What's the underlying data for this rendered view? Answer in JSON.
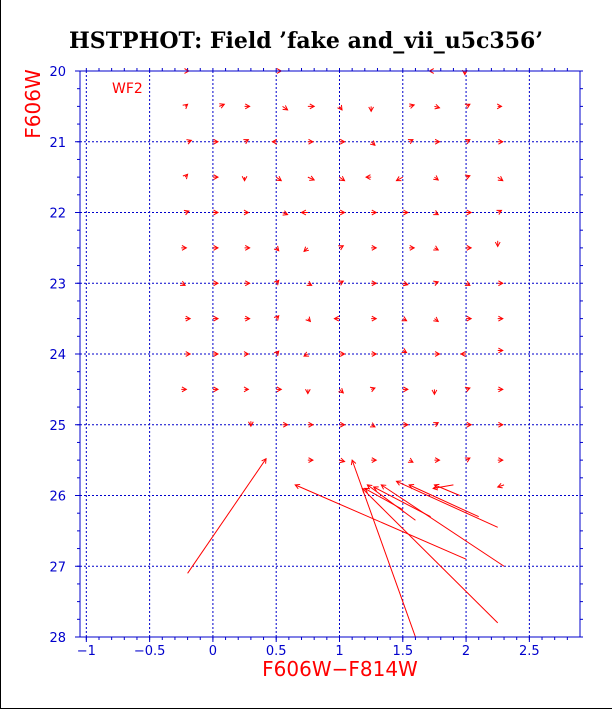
{
  "chart_data": {
    "type": "scatter",
    "title": "HSTPHOT: Field ’fake and_vii_u5c356’",
    "xlabel": "F606W−F814W",
    "ylabel": "F606W",
    "annotation": "WF2",
    "xlim": [
      -1.05,
      2.9
    ],
    "ylim": [
      28,
      20
    ],
    "y_inverted": true,
    "grid": true,
    "x_ticks": [
      "−1",
      "−0.5",
      "0",
      "0.5",
      "1",
      "1.5",
      "2",
      "2.5"
    ],
    "x_tick_values": [
      -1,
      -0.5,
      0,
      0.5,
      1,
      1.5,
      2,
      2.5
    ],
    "y_ticks": [
      "20",
      "21",
      "22",
      "23",
      "24",
      "25",
      "26",
      "27",
      "28"
    ],
    "y_tick_values": [
      20,
      21,
      22,
      23,
      24,
      25,
      26,
      27,
      28
    ],
    "colors": {
      "data": "#ff0000",
      "axes": "#0000cc",
      "grid": "#0000cc",
      "title": "#000000"
    },
    "vectors": [
      {
        "x": -0.25,
        "y": 20.0,
        "dx": 0.06,
        "dy": 0.0
      },
      {
        "x": 0.5,
        "y": 20.0,
        "dx": 0.04,
        "dy": 0.0
      },
      {
        "x": 1.75,
        "y": 20.0,
        "dx": -0.04,
        "dy": 0.0
      },
      {
        "x": 1.99,
        "y": 20.0,
        "dx": 0.0,
        "dy": 0.05
      },
      {
        "x": -0.22,
        "y": 20.5,
        "dx": 0.02,
        "dy": -0.03
      },
      {
        "x": 0.05,
        "y": 20.5,
        "dx": 0.04,
        "dy": -0.03
      },
      {
        "x": 0.25,
        "y": 20.5,
        "dx": 0.04,
        "dy": 0.0
      },
      {
        "x": 0.55,
        "y": 20.5,
        "dx": 0.04,
        "dy": 0.05
      },
      {
        "x": 0.75,
        "y": 20.5,
        "dx": 0.05,
        "dy": 0.0
      },
      {
        "x": 1.0,
        "y": 20.5,
        "dx": 0.02,
        "dy": 0.05
      },
      {
        "x": 1.25,
        "y": 20.5,
        "dx": 0.0,
        "dy": 0.07
      },
      {
        "x": 1.55,
        "y": 20.5,
        "dx": 0.04,
        "dy": -0.02
      },
      {
        "x": 1.75,
        "y": 20.5,
        "dx": 0.04,
        "dy": 0.02
      },
      {
        "x": 2.0,
        "y": 20.5,
        "dx": 0.03,
        "dy": -0.03
      },
      {
        "x": 2.25,
        "y": 20.5,
        "dx": 0.03,
        "dy": 0.0
      },
      {
        "x": -0.2,
        "y": 21.0,
        "dx": 0.03,
        "dy": -0.02
      },
      {
        "x": 0.0,
        "y": 21.0,
        "dx": 0.04,
        "dy": 0.0
      },
      {
        "x": 0.25,
        "y": 21.0,
        "dx": 0.03,
        "dy": -0.03
      },
      {
        "x": 0.5,
        "y": 21.0,
        "dx": -0.03,
        "dy": 0.0
      },
      {
        "x": 0.75,
        "y": 21.0,
        "dx": 0.04,
        "dy": 0.0
      },
      {
        "x": 1.0,
        "y": 21.0,
        "dx": 0.04,
        "dy": 0.0
      },
      {
        "x": 1.25,
        "y": 21.0,
        "dx": 0.03,
        "dy": 0.05
      },
      {
        "x": 1.55,
        "y": 21.0,
        "dx": 0.03,
        "dy": -0.03
      },
      {
        "x": 1.75,
        "y": 21.0,
        "dx": 0.04,
        "dy": 0.0
      },
      {
        "x": 2.0,
        "y": 21.0,
        "dx": 0.03,
        "dy": -0.03
      },
      {
        "x": 2.25,
        "y": 21.0,
        "dx": 0.04,
        "dy": 0.0
      },
      {
        "x": -0.22,
        "y": 21.5,
        "dx": 0.02,
        "dy": -0.04
      },
      {
        "x": 0.0,
        "y": 21.5,
        "dx": 0.04,
        "dy": 0.0
      },
      {
        "x": 0.25,
        "y": 21.5,
        "dx": 0.0,
        "dy": 0.05
      },
      {
        "x": 0.5,
        "y": 21.5,
        "dx": 0.04,
        "dy": 0.05
      },
      {
        "x": 0.75,
        "y": 21.5,
        "dx": 0.05,
        "dy": 0.04
      },
      {
        "x": 1.0,
        "y": 21.5,
        "dx": 0.04,
        "dy": 0.05
      },
      {
        "x": 1.25,
        "y": 21.5,
        "dx": -0.04,
        "dy": 0.0
      },
      {
        "x": 1.5,
        "y": 21.5,
        "dx": -0.05,
        "dy": 0.05
      },
      {
        "x": 1.75,
        "y": 21.5,
        "dx": 0.03,
        "dy": 0.04
      },
      {
        "x": 2.0,
        "y": 21.5,
        "dx": 0.03,
        "dy": -0.02
      },
      {
        "x": 2.25,
        "y": 21.5,
        "dx": 0.04,
        "dy": 0.05
      },
      {
        "x": -0.22,
        "y": 22.0,
        "dx": 0.03,
        "dy": -0.02
      },
      {
        "x": 0.0,
        "y": 22.0,
        "dx": 0.04,
        "dy": 0.0
      },
      {
        "x": 0.25,
        "y": 22.0,
        "dx": 0.03,
        "dy": 0.0
      },
      {
        "x": 0.55,
        "y": 22.0,
        "dx": 0.04,
        "dy": 0.03
      },
      {
        "x": 0.75,
        "y": 22.0,
        "dx": -0.05,
        "dy": 0.0
      },
      {
        "x": 1.0,
        "y": 22.0,
        "dx": 0.04,
        "dy": 0.0
      },
      {
        "x": 1.25,
        "y": 22.0,
        "dx": 0.04,
        "dy": 0.0
      },
      {
        "x": 1.5,
        "y": 22.0,
        "dx": 0.04,
        "dy": 0.0
      },
      {
        "x": 1.75,
        "y": 22.0,
        "dx": 0.03,
        "dy": 0.03
      },
      {
        "x": 2.0,
        "y": 22.0,
        "dx": 0.04,
        "dy": 0.0
      },
      {
        "x": 2.25,
        "y": 22.0,
        "dx": 0.03,
        "dy": -0.03
      },
      {
        "x": -0.25,
        "y": 22.5,
        "dx": 0.04,
        "dy": 0.0
      },
      {
        "x": 0.0,
        "y": 22.5,
        "dx": 0.04,
        "dy": 0.0
      },
      {
        "x": 0.25,
        "y": 22.5,
        "dx": 0.04,
        "dy": 0.0
      },
      {
        "x": 0.5,
        "y": 22.5,
        "dx": 0.02,
        "dy": 0.04
      },
      {
        "x": 0.75,
        "y": 22.5,
        "dx": -0.03,
        "dy": 0.05
      },
      {
        "x": 1.0,
        "y": 22.5,
        "dx": 0.03,
        "dy": -0.03
      },
      {
        "x": 1.25,
        "y": 22.5,
        "dx": 0.04,
        "dy": 0.0
      },
      {
        "x": 1.55,
        "y": 22.5,
        "dx": 0.04,
        "dy": 0.0
      },
      {
        "x": 1.75,
        "y": 22.5,
        "dx": 0.03,
        "dy": 0.03
      },
      {
        "x": 2.0,
        "y": 22.5,
        "dx": 0.04,
        "dy": 0.0
      },
      {
        "x": 2.25,
        "y": 22.4,
        "dx": 0.0,
        "dy": 0.08
      },
      {
        "x": -0.25,
        "y": 23.0,
        "dx": 0.03,
        "dy": 0.03
      },
      {
        "x": 0.0,
        "y": 23.0,
        "dx": 0.04,
        "dy": 0.0
      },
      {
        "x": 0.25,
        "y": 23.0,
        "dx": 0.04,
        "dy": 0.0
      },
      {
        "x": 0.5,
        "y": 23.0,
        "dx": 0.02,
        "dy": -0.04
      },
      {
        "x": 0.75,
        "y": 23.0,
        "dx": 0.03,
        "dy": 0.03
      },
      {
        "x": 1.0,
        "y": 23.0,
        "dx": 0.03,
        "dy": -0.03
      },
      {
        "x": 1.25,
        "y": 23.0,
        "dx": 0.04,
        "dy": 0.0
      },
      {
        "x": 1.5,
        "y": 23.0,
        "dx": 0.04,
        "dy": 0.02
      },
      {
        "x": 1.75,
        "y": 23.0,
        "dx": 0.03,
        "dy": -0.02
      },
      {
        "x": 2.0,
        "y": 23.0,
        "dx": 0.03,
        "dy": 0.03
      },
      {
        "x": 2.25,
        "y": 23.0,
        "dx": 0.04,
        "dy": 0.0
      },
      {
        "x": -0.22,
        "y": 23.5,
        "dx": 0.04,
        "dy": 0.0
      },
      {
        "x": 0.0,
        "y": 23.5,
        "dx": 0.04,
        "dy": 0.0
      },
      {
        "x": 0.25,
        "y": 23.5,
        "dx": 0.04,
        "dy": 0.0
      },
      {
        "x": 0.5,
        "y": 23.5,
        "dx": 0.02,
        "dy": -0.04
      },
      {
        "x": 0.75,
        "y": 23.5,
        "dx": 0.02,
        "dy": 0.04
      },
      {
        "x": 1.0,
        "y": 23.5,
        "dx": -0.04,
        "dy": 0.0
      },
      {
        "x": 1.25,
        "y": 23.5,
        "dx": 0.04,
        "dy": 0.0
      },
      {
        "x": 1.5,
        "y": 23.5,
        "dx": 0.03,
        "dy": 0.03
      },
      {
        "x": 1.75,
        "y": 23.5,
        "dx": 0.03,
        "dy": 0.04
      },
      {
        "x": 2.0,
        "y": 23.5,
        "dx": 0.04,
        "dy": 0.0
      },
      {
        "x": 2.25,
        "y": 23.5,
        "dx": 0.04,
        "dy": 0.0
      },
      {
        "x": -0.22,
        "y": 24.0,
        "dx": 0.04,
        "dy": 0.0
      },
      {
        "x": 0.0,
        "y": 24.0,
        "dx": 0.04,
        "dy": 0.0
      },
      {
        "x": 0.25,
        "y": 24.0,
        "dx": 0.03,
        "dy": 0.0
      },
      {
        "x": 0.5,
        "y": 24.0,
        "dx": 0.02,
        "dy": -0.04
      },
      {
        "x": 0.75,
        "y": 24.0,
        "dx": -0.03,
        "dy": 0.03
      },
      {
        "x": 1.0,
        "y": 24.0,
        "dx": 0.04,
        "dy": 0.0
      },
      {
        "x": 1.25,
        "y": 24.0,
        "dx": 0.04,
        "dy": 0.0
      },
      {
        "x": 1.5,
        "y": 23.95,
        "dx": 0.03,
        "dy": 0.03
      },
      {
        "x": 1.75,
        "y": 24.0,
        "dx": 0.04,
        "dy": 0.0
      },
      {
        "x": 2.0,
        "y": 24.0,
        "dx": -0.04,
        "dy": 0.0
      },
      {
        "x": 2.25,
        "y": 23.95,
        "dx": 0.04,
        "dy": 0.0
      },
      {
        "x": -0.25,
        "y": 24.5,
        "dx": 0.04,
        "dy": 0.0
      },
      {
        "x": 0.0,
        "y": 24.5,
        "dx": 0.04,
        "dy": 0.0
      },
      {
        "x": 0.25,
        "y": 24.5,
        "dx": 0.03,
        "dy": 0.0
      },
      {
        "x": 0.5,
        "y": 24.5,
        "dx": 0.04,
        "dy": 0.0
      },
      {
        "x": 0.75,
        "y": 24.5,
        "dx": 0.0,
        "dy": 0.06
      },
      {
        "x": 1.0,
        "y": 24.5,
        "dx": 0.03,
        "dy": 0.05
      },
      {
        "x": 1.25,
        "y": 24.5,
        "dx": 0.03,
        "dy": -0.02
      },
      {
        "x": 1.5,
        "y": 24.5,
        "dx": 0.04,
        "dy": 0.0
      },
      {
        "x": 1.75,
        "y": 24.5,
        "dx": 0.0,
        "dy": 0.07
      },
      {
        "x": 2.0,
        "y": 24.5,
        "dx": 0.03,
        "dy": -0.02
      },
      {
        "x": 2.25,
        "y": 24.5,
        "dx": 0.04,
        "dy": 0.0
      },
      {
        "x": 0.3,
        "y": 24.95,
        "dx": 0.0,
        "dy": 0.07
      },
      {
        "x": 0.55,
        "y": 25.0,
        "dx": 0.04,
        "dy": 0.0
      },
      {
        "x": 0.75,
        "y": 25.0,
        "dx": 0.04,
        "dy": 0.0
      },
      {
        "x": 1.0,
        "y": 25.0,
        "dx": 0.04,
        "dy": 0.0
      },
      {
        "x": 1.25,
        "y": 25.0,
        "dx": 0.03,
        "dy": 0.03
      },
      {
        "x": 1.5,
        "y": 25.0,
        "dx": 0.04,
        "dy": 0.0
      },
      {
        "x": 1.75,
        "y": 25.0,
        "dx": 0.03,
        "dy": -0.03
      },
      {
        "x": 2.0,
        "y": 25.0,
        "dx": 0.04,
        "dy": 0.0
      },
      {
        "x": 2.25,
        "y": 25.0,
        "dx": 0.04,
        "dy": 0.0
      },
      {
        "x": 0.75,
        "y": 25.5,
        "dx": 0.04,
        "dy": 0.0
      },
      {
        "x": 1.0,
        "y": 25.5,
        "dx": 0.04,
        "dy": 0.02
      },
      {
        "x": 1.25,
        "y": 25.5,
        "dx": 0.04,
        "dy": 0.0
      },
      {
        "x": 1.55,
        "y": 25.5,
        "dx": 0.03,
        "dy": 0.03
      },
      {
        "x": 1.75,
        "y": 25.5,
        "dx": 0.04,
        "dy": 0.0
      },
      {
        "x": 2.0,
        "y": 25.5,
        "dx": 0.03,
        "dy": -0.03
      },
      {
        "x": 2.25,
        "y": 25.5,
        "dx": 0.04,
        "dy": 0.0
      },
      {
        "x": -0.2,
        "y": 27.1,
        "dx": 0.62,
        "dy": -1.62
      },
      {
        "x": 2.0,
        "y": 26.9,
        "dx": -1.35,
        "dy": -1.05
      },
      {
        "x": 1.6,
        "y": 28.0,
        "dx": -0.5,
        "dy": -2.5
      },
      {
        "x": 2.25,
        "y": 27.8,
        "dx": -1.07,
        "dy": -1.9
      },
      {
        "x": 2.3,
        "y": 27.0,
        "dx": -0.97,
        "dy": -1.15
      },
      {
        "x": 2.25,
        "y": 26.45,
        "dx": -0.8,
        "dy": -0.65
      },
      {
        "x": 2.1,
        "y": 26.3,
        "dx": -0.55,
        "dy": -0.45
      },
      {
        "x": 1.72,
        "y": 26.3,
        "dx": -0.45,
        "dy": -0.42
      },
      {
        "x": 1.6,
        "y": 26.35,
        "dx": -0.38,
        "dy": -0.5
      },
      {
        "x": 1.5,
        "y": 26.2,
        "dx": -0.3,
        "dy": -0.3
      },
      {
        "x": 1.95,
        "y": 26.0,
        "dx": -0.2,
        "dy": -0.15
      },
      {
        "x": 1.9,
        "y": 25.85,
        "dx": -0.16,
        "dy": 0.05
      },
      {
        "x": 2.3,
        "y": 25.85,
        "dx": -0.05,
        "dy": 0.03
      }
    ]
  }
}
